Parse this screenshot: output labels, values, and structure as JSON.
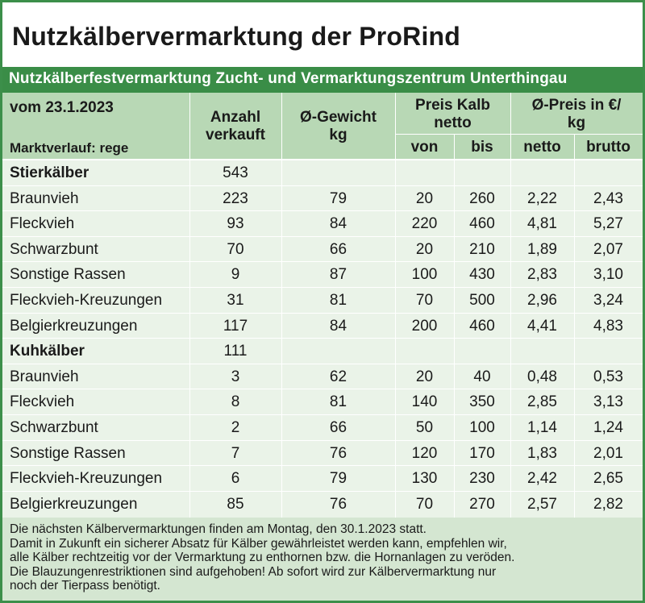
{
  "title": "Nutzkälbervermarktung der ProRind",
  "subtitle": "Nutzkälberfestvermarktung Zucht- und Vermarktungszentrum Unterthingau",
  "header": {
    "date": "vom 23.1.2023",
    "market": "Marktverlauf: rege",
    "count": [
      "Anzahl",
      "verkauft"
    ],
    "weight": [
      "Ø-Gewicht",
      "kg"
    ],
    "price": [
      "Preis Kalb",
      "netto"
    ],
    "price_from": "von",
    "price_to": "bis",
    "avg_price": [
      "Ø-Preis in €/",
      "kg"
    ],
    "net": "netto",
    "gross": "brutto"
  },
  "rows": [
    {
      "name": "Stierkälber",
      "count": "543",
      "weight": "",
      "from": "",
      "to": "",
      "net": "",
      "gross": "",
      "group": true
    },
    {
      "name": "Braunvieh",
      "count": "223",
      "weight": "79",
      "from": "20",
      "to": "260",
      "net": "2,22",
      "gross": "2,43"
    },
    {
      "name": "Fleckvieh",
      "count": "93",
      "weight": "84",
      "from": "220",
      "to": "460",
      "net": "4,81",
      "gross": "5,27"
    },
    {
      "name": "Schwarzbunt",
      "count": "70",
      "weight": "66",
      "from": "20",
      "to": "210",
      "net": "1,89",
      "gross": "2,07"
    },
    {
      "name": "Sonstige Rassen",
      "count": "9",
      "weight": "87",
      "from": "100",
      "to": "430",
      "net": "2,83",
      "gross": "3,10"
    },
    {
      "name": "Fleckvieh-Kreuzungen",
      "count": "31",
      "weight": "81",
      "from": "70",
      "to": "500",
      "net": "2,96",
      "gross": "3,24"
    },
    {
      "name": "Belgierkreuzungen",
      "count": "117",
      "weight": "84",
      "from": "200",
      "to": "460",
      "net": "4,41",
      "gross": "4,83"
    },
    {
      "name": "Kuhkälber",
      "count": "111",
      "weight": "",
      "from": "",
      "to": "",
      "net": "",
      "gross": "",
      "group": true
    },
    {
      "name": "Braunvieh",
      "count": "3",
      "weight": "62",
      "from": "20",
      "to": "40",
      "net": "0,48",
      "gross": "0,53"
    },
    {
      "name": "Fleckvieh",
      "count": "8",
      "weight": "81",
      "from": "140",
      "to": "350",
      "net": "2,85",
      "gross": "3,13"
    },
    {
      "name": "Schwarzbunt",
      "count": "2",
      "weight": "66",
      "from": "50",
      "to": "100",
      "net": "1,14",
      "gross": "1,24"
    },
    {
      "name": "Sonstige Rassen",
      "count": "7",
      "weight": "76",
      "from": "120",
      "to": "170",
      "net": "1,83",
      "gross": "2,01"
    },
    {
      "name": "Fleckvieh-Kreuzungen",
      "count": "6",
      "weight": "79",
      "from": "130",
      "to": "230",
      "net": "2,42",
      "gross": "2,65"
    },
    {
      "name": "Belgierkreuzungen",
      "count": "85",
      "weight": "76",
      "from": "70",
      "to": "270",
      "net": "2,57",
      "gross": "2,82"
    }
  ],
  "footer": [
    "Die nächsten Kälbervermarktungen finden am Montag, den 30.1.2023 statt.",
    "Damit in Zukunft ein sicherer Absatz für Kälber gewährleistet werden kann, empfehlen wir,",
    "alle Kälber rechtzeitig vor der Vermarktung zu enthornen bzw. die Hornanlagen zu veröden.",
    "Die Blauzungenrestriktionen sind aufgehoben! Ab sofort wird zur Kälbervermarktung nur",
    "noch der Tierpass benötigt."
  ],
  "colors": {
    "brand_green": "#3a8d47",
    "header_bg": "#b8d8b5",
    "body_bg": "#eaf3e8",
    "footer_bg": "#d4e6d1"
  }
}
